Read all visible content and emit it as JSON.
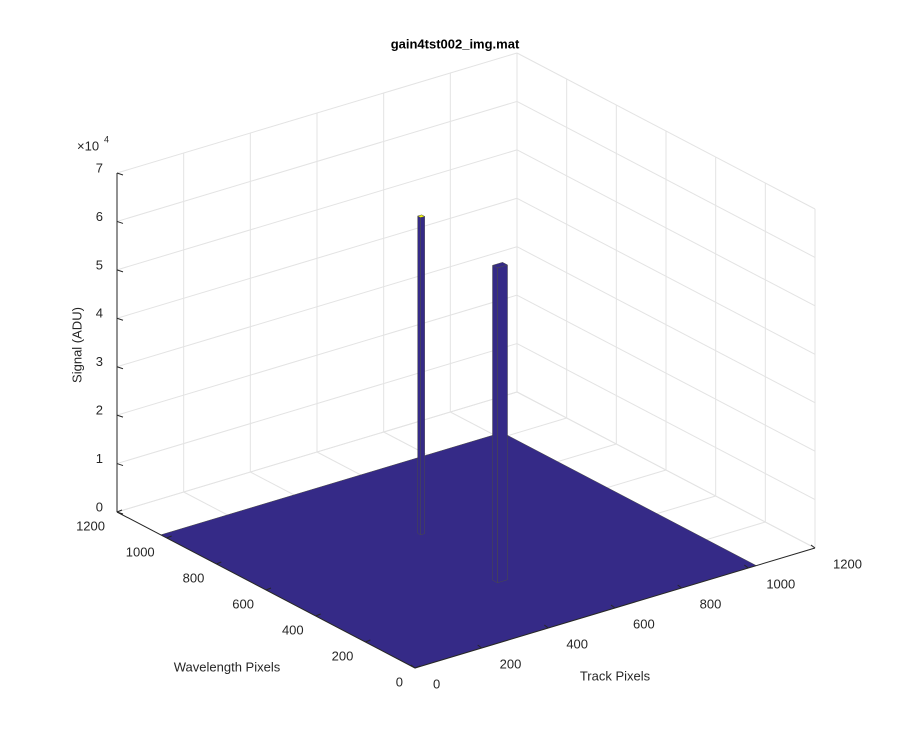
{
  "chart_data": {
    "type": "surface",
    "title": "gain4tst002_img.mat",
    "xlabel": "Track Pixels",
    "ylabel": "Wavelength Pixels",
    "zlabel": "Signal (ADU)",
    "z_multiplier": {
      "base": "×10",
      "exponent": "4"
    },
    "xlim": [
      0,
      1200
    ],
    "ylim": [
      0,
      1200
    ],
    "zlim": [
      0,
      7
    ],
    "xticks": [
      0,
      200,
      400,
      600,
      800,
      1000,
      1200
    ],
    "yticks": [
      0,
      200,
      400,
      600,
      800,
      1000,
      1200
    ],
    "zticks": [
      0,
      1,
      2,
      3,
      4,
      5,
      6,
      7
    ],
    "grid": true,
    "surface": {
      "x_range": [
        1,
        1024
      ],
      "y_range": [
        1,
        1024
      ],
      "value": 0,
      "color": "#352a87"
    },
    "peaks": [
      {
        "x": 502,
        "y": 649,
        "value": 6.55,
        "x_width": 12,
        "y_width": 12,
        "color": "#352a87",
        "top_color": "#f9fb0e"
      },
      {
        "x": 483,
        "y": 306,
        "value": 6.5,
        "x_width": 30,
        "y_width": 20,
        "color": "#352a87",
        "top_color": "#352a87"
      }
    ]
  }
}
